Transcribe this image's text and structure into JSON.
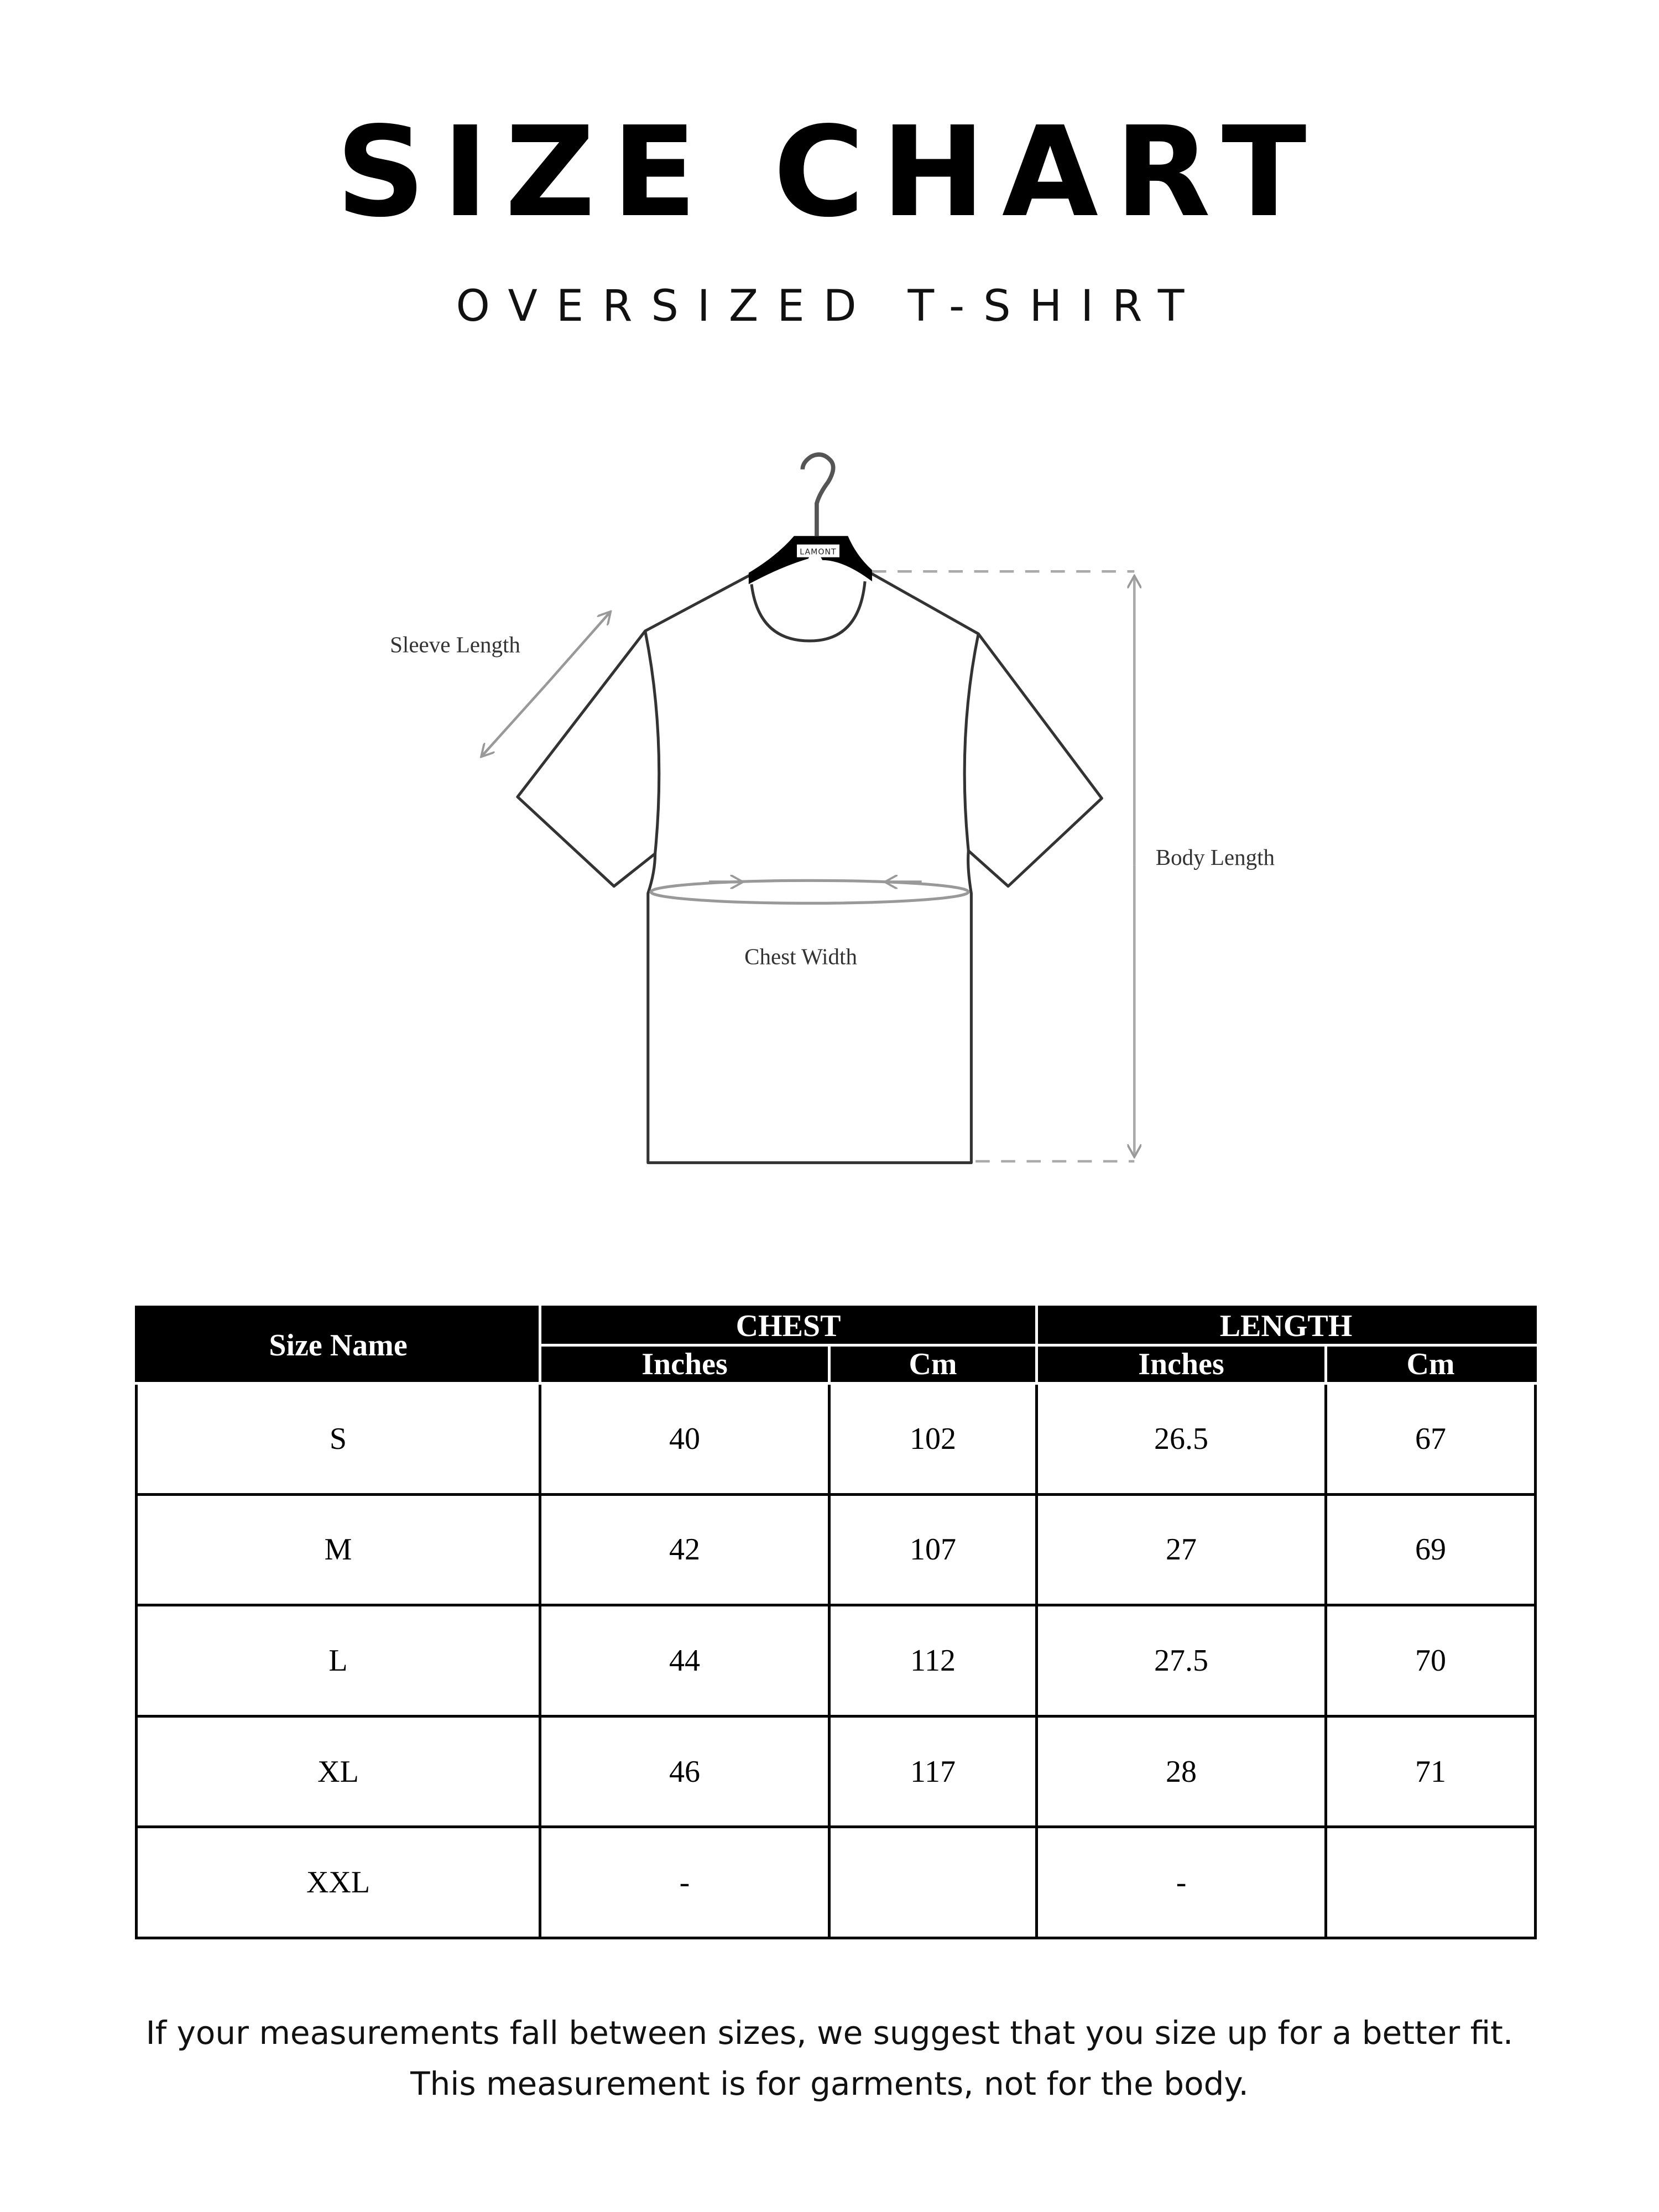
{
  "header": {
    "title": "SIZE CHART",
    "subtitle": "OVERSIZED T-SHIRT"
  },
  "diagram": {
    "hanger_brand": "LAMONT",
    "labels": {
      "sleeve_length": "Sleeve Length",
      "body_length": "Body Length",
      "chest_width": "Chest Width"
    }
  },
  "table": {
    "size_header": "Size Name",
    "groups": [
      "CHEST",
      "LENGTH"
    ],
    "units": [
      "Inches",
      "Cm",
      "Inches",
      "Cm"
    ],
    "rows": [
      {
        "size": "S",
        "chest_in": "40",
        "chest_cm": "102",
        "length_in": "26.5",
        "length_cm": "67"
      },
      {
        "size": "M",
        "chest_in": "42",
        "chest_cm": "107",
        "length_in": "27",
        "length_cm": "69"
      },
      {
        "size": "L",
        "chest_in": "44",
        "chest_cm": "112",
        "length_in": "27.5",
        "length_cm": "70"
      },
      {
        "size": "XL",
        "chest_in": "46",
        "chest_cm": "117",
        "length_in": "28",
        "length_cm": "71"
      },
      {
        "size": "XXL",
        "chest_in": "-",
        "chest_cm": "",
        "length_in": "-",
        "length_cm": ""
      }
    ]
  },
  "footer": {
    "line1": "If your measurements fall between sizes, we suggest that you size up for a better fit.",
    "line2": "This measurement is for garments, not for the body."
  }
}
